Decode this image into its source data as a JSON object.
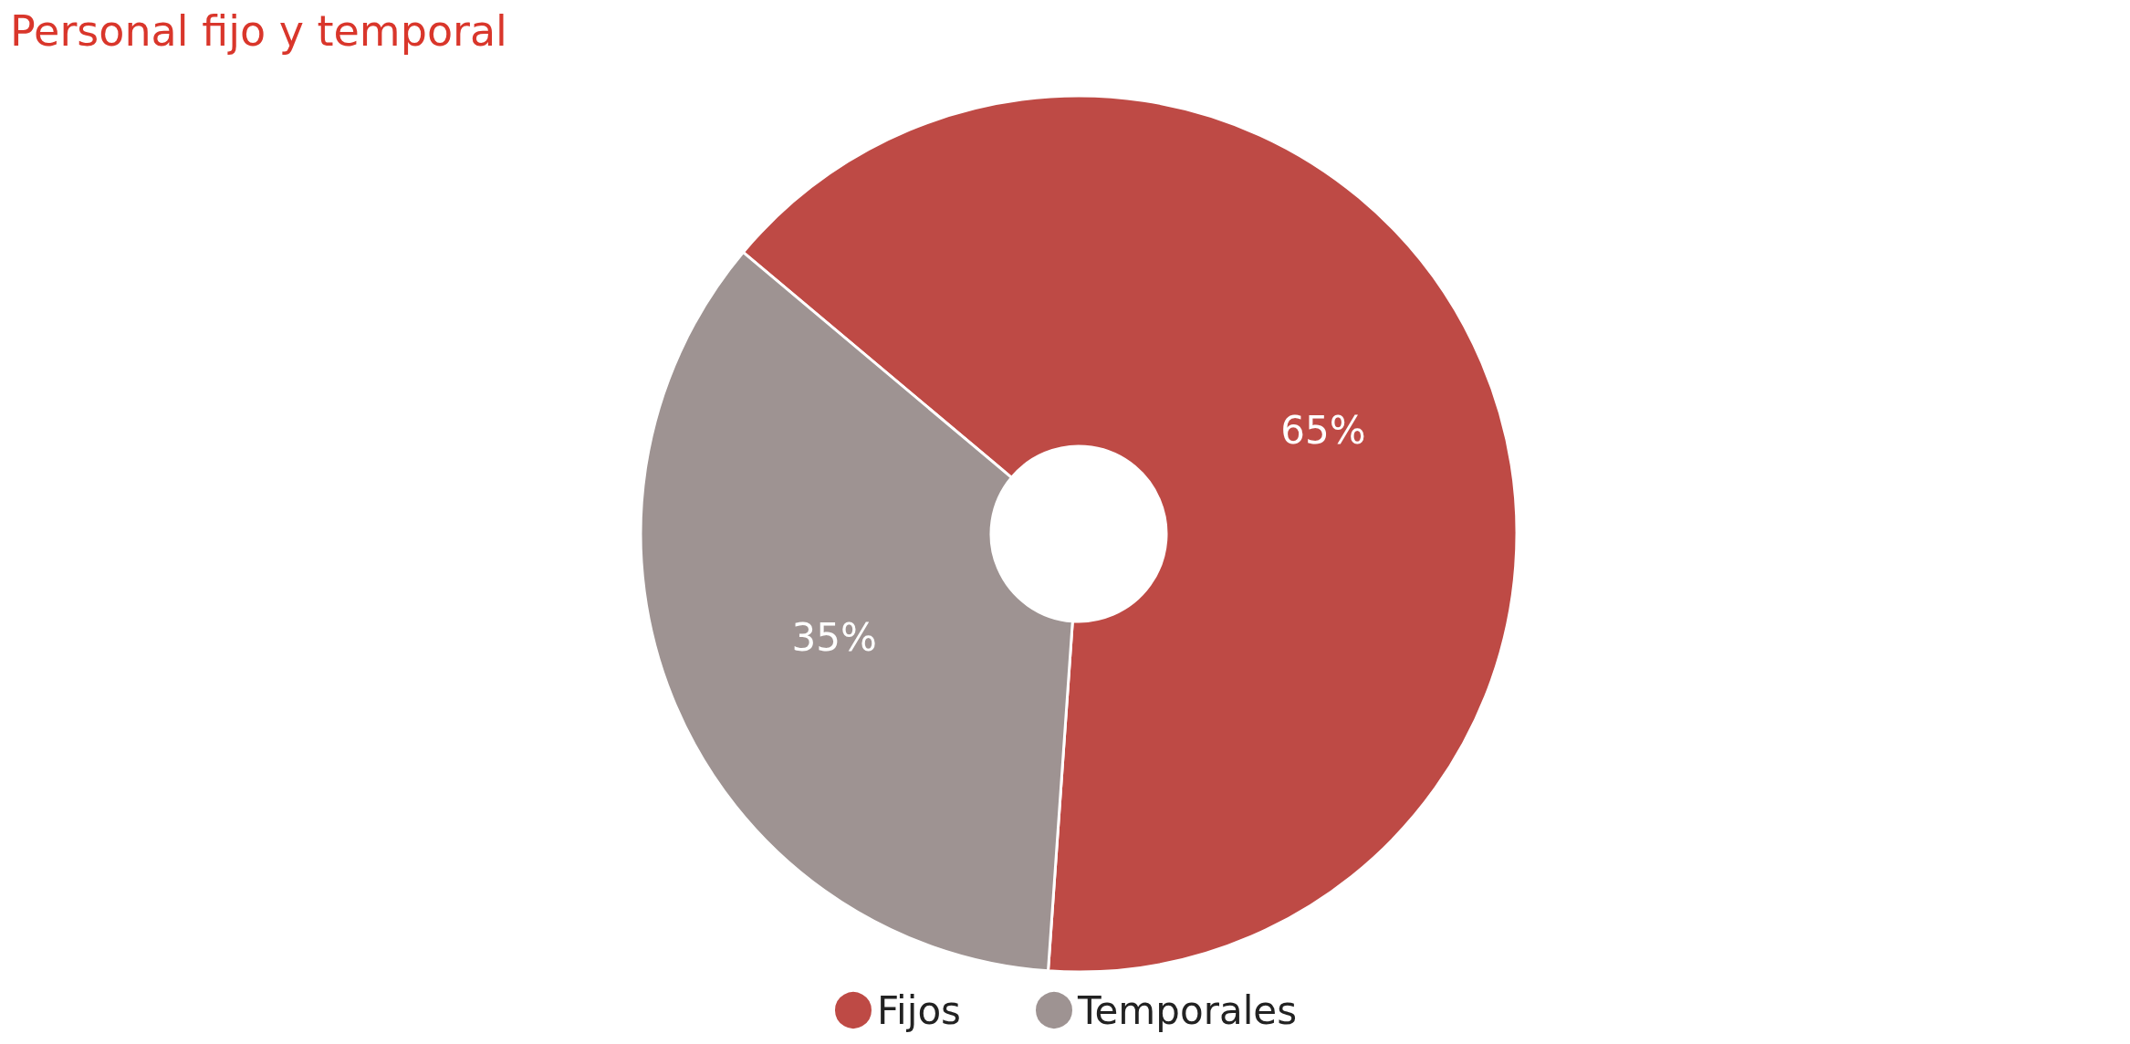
{
  "chart_data": {
    "type": "donut",
    "title": "Personal fijo y temporal",
    "categories": [
      "Fijos",
      "Temporales"
    ],
    "values": [
      65,
      35
    ],
    "colors": [
      "#be4a45",
      "#9e9392"
    ],
    "value_labels": [
      "65%",
      "35%"
    ],
    "legend": "bottom"
  }
}
